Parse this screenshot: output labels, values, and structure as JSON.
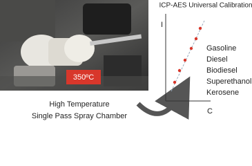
{
  "photo": {
    "temperature_label": "350ºC",
    "caption": [
      "High Temperature",
      "Single Pass Spray Chamber"
    ]
  },
  "graph": {
    "title": "ICP-AES Universal Calibration",
    "y_axis_label": "I",
    "x_axis_label": "C",
    "fuels": [
      "Gasoline",
      "Diesel",
      "Biodiesel",
      "Superethanol",
      "Kerosene"
    ]
  }
}
